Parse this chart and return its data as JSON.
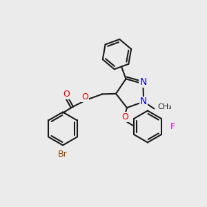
{
  "background_color": "#ebebeb",
  "bond_color": "#1a1a1a",
  "colors": {
    "N": "#0000dd",
    "O": "#dd0000",
    "F": "#cc00cc",
    "Br": "#994400",
    "C": "#1a1a1a"
  },
  "font_size": 9,
  "lw": 1.5
}
